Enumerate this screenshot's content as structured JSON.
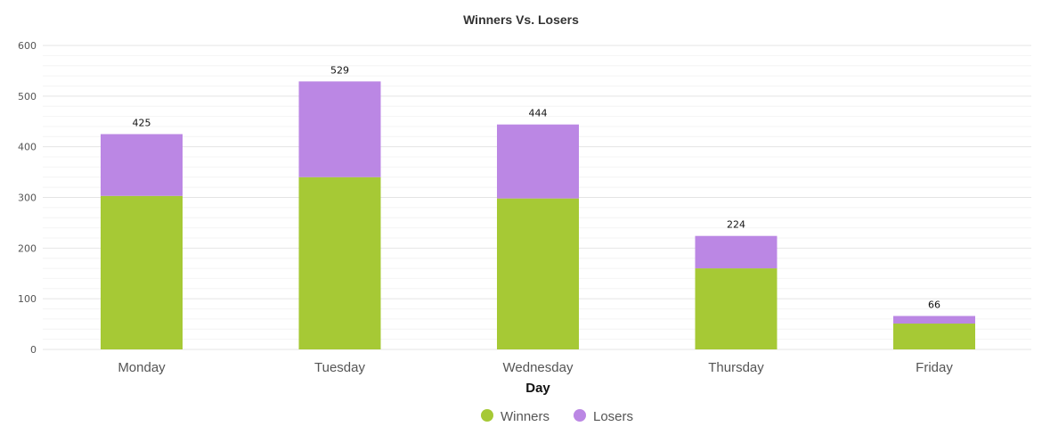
{
  "chart_data": {
    "type": "bar",
    "stacked": true,
    "title": "Winners Vs. Losers",
    "xlabel": "Day",
    "ylabel": "",
    "categories": [
      "Monday",
      "Tuesday",
      "Wednesday",
      "Thursday",
      "Friday"
    ],
    "series": [
      {
        "name": "Winners",
        "color": "#a6c935",
        "values": [
          303,
          340,
          298,
          160,
          51
        ]
      },
      {
        "name": "Losers",
        "color": "#bb87e4",
        "values": [
          122,
          189,
          146,
          64,
          15
        ]
      }
    ],
    "totals": [
      425,
      529,
      444,
      224,
      66
    ],
    "ylim": [
      0,
      600
    ],
    "yticks": [
      0,
      100,
      200,
      300,
      400,
      500,
      600
    ],
    "grid": true,
    "legend_position": "bottom-center"
  }
}
